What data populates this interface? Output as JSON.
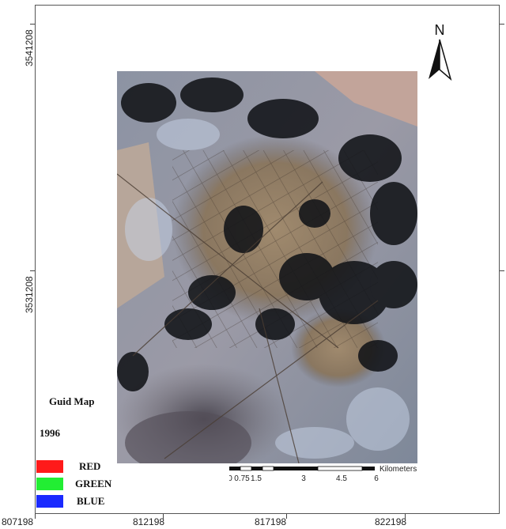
{
  "map": {
    "north_label": "N",
    "legend": {
      "title": "Guid Map",
      "year": "1996",
      "bands": [
        {
          "label": "RED",
          "color": "#ff1a1a"
        },
        {
          "label": "GREEN",
          "color": "#22ee33"
        },
        {
          "label": "BLUE",
          "color": "#1a2aff"
        }
      ]
    },
    "scale": {
      "ticks": [
        "0",
        "0.75",
        "1.5",
        "3",
        "4.5",
        "6"
      ],
      "unit": "Kilometers"
    },
    "x_axis_labels": [
      "807198",
      "812198",
      "817198",
      "822198"
    ],
    "y_axis_labels": [
      "3541208",
      "3531208"
    ]
  }
}
